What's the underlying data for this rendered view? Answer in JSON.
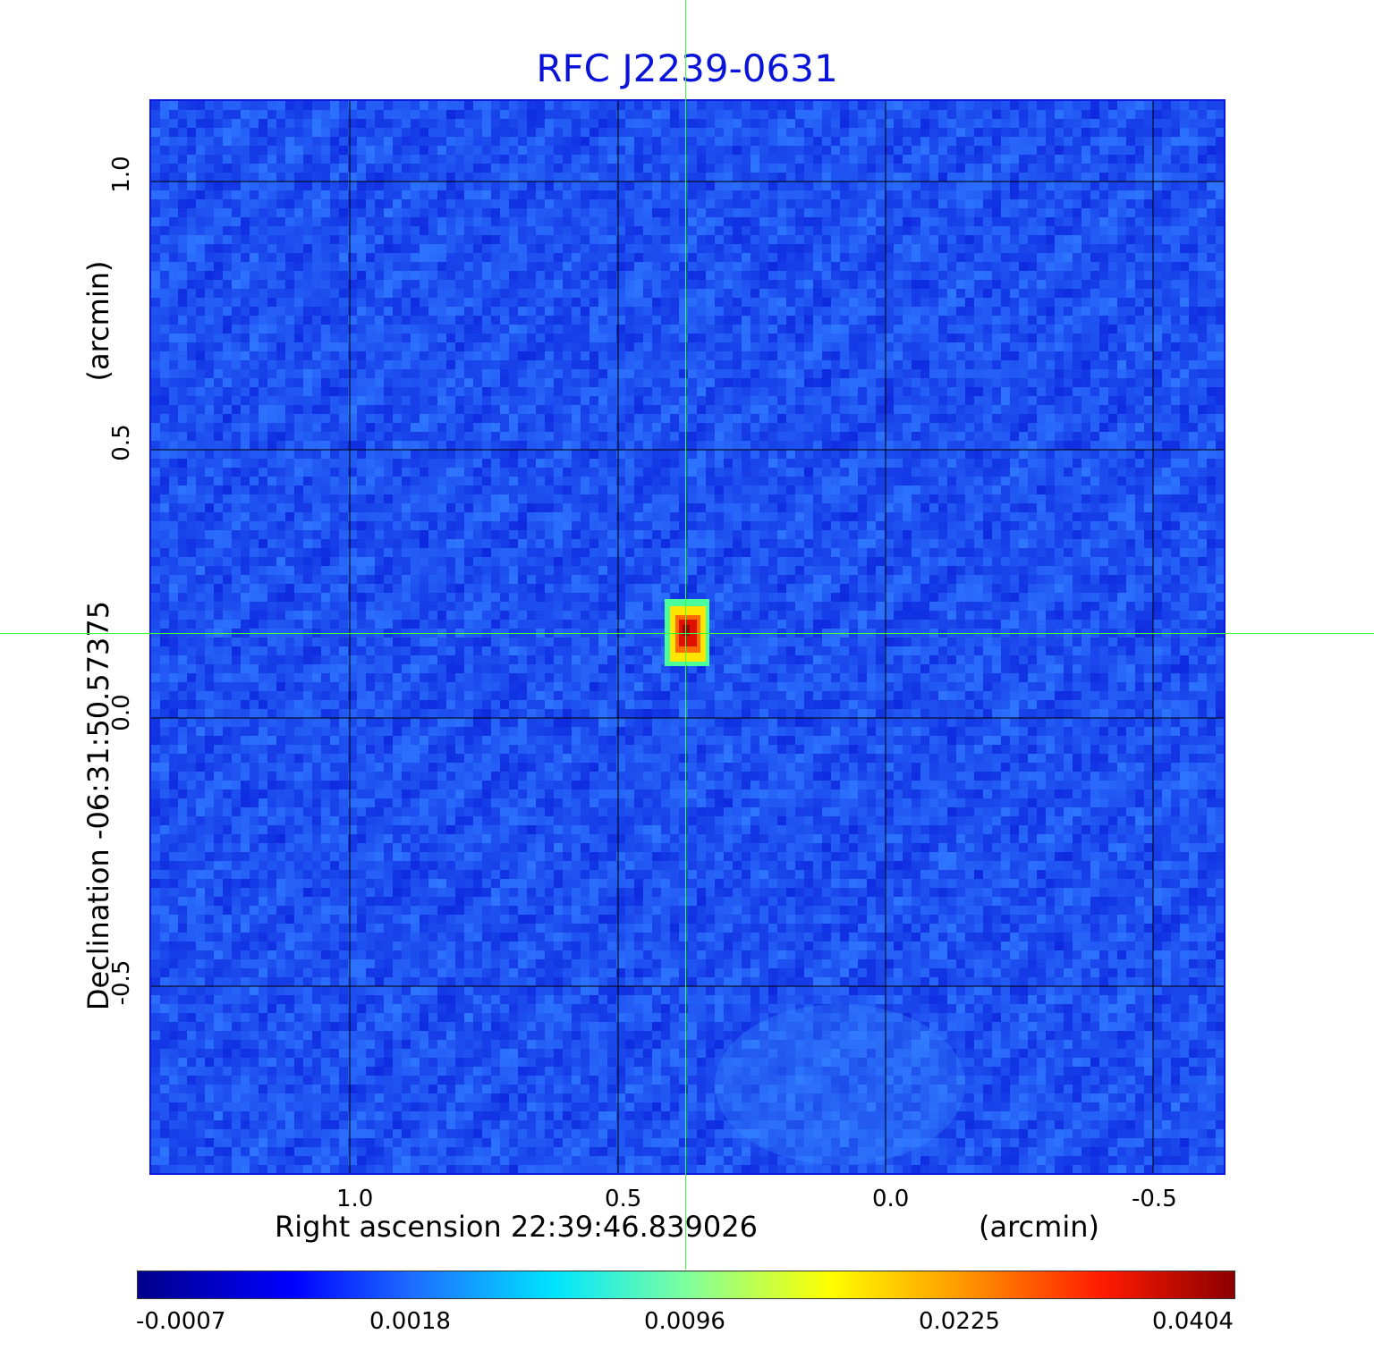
{
  "title": "RFC J2239-0631",
  "x_axis": {
    "label": "Right ascension  22:39:46.839026",
    "unit": "(arcmin)",
    "ticks": [
      "1.0",
      "0.5",
      "0.0",
      "-0.5"
    ]
  },
  "y_axis": {
    "label": "Declination  -06:31:50.57375",
    "unit": "(arcmin)",
    "ticks": [
      "1.0",
      "0.5",
      "0.0",
      "-0.5"
    ]
  },
  "colorbar": {
    "ticks": [
      "-0.0007",
      "0.0018",
      "0.0096",
      "0.0225",
      "0.0404"
    ],
    "colormap": "jet"
  },
  "colors": {
    "title": "#0a14d8",
    "background_map": "#1e50f0",
    "crosshair": "#3cff3c",
    "grid": "#000000"
  }
}
